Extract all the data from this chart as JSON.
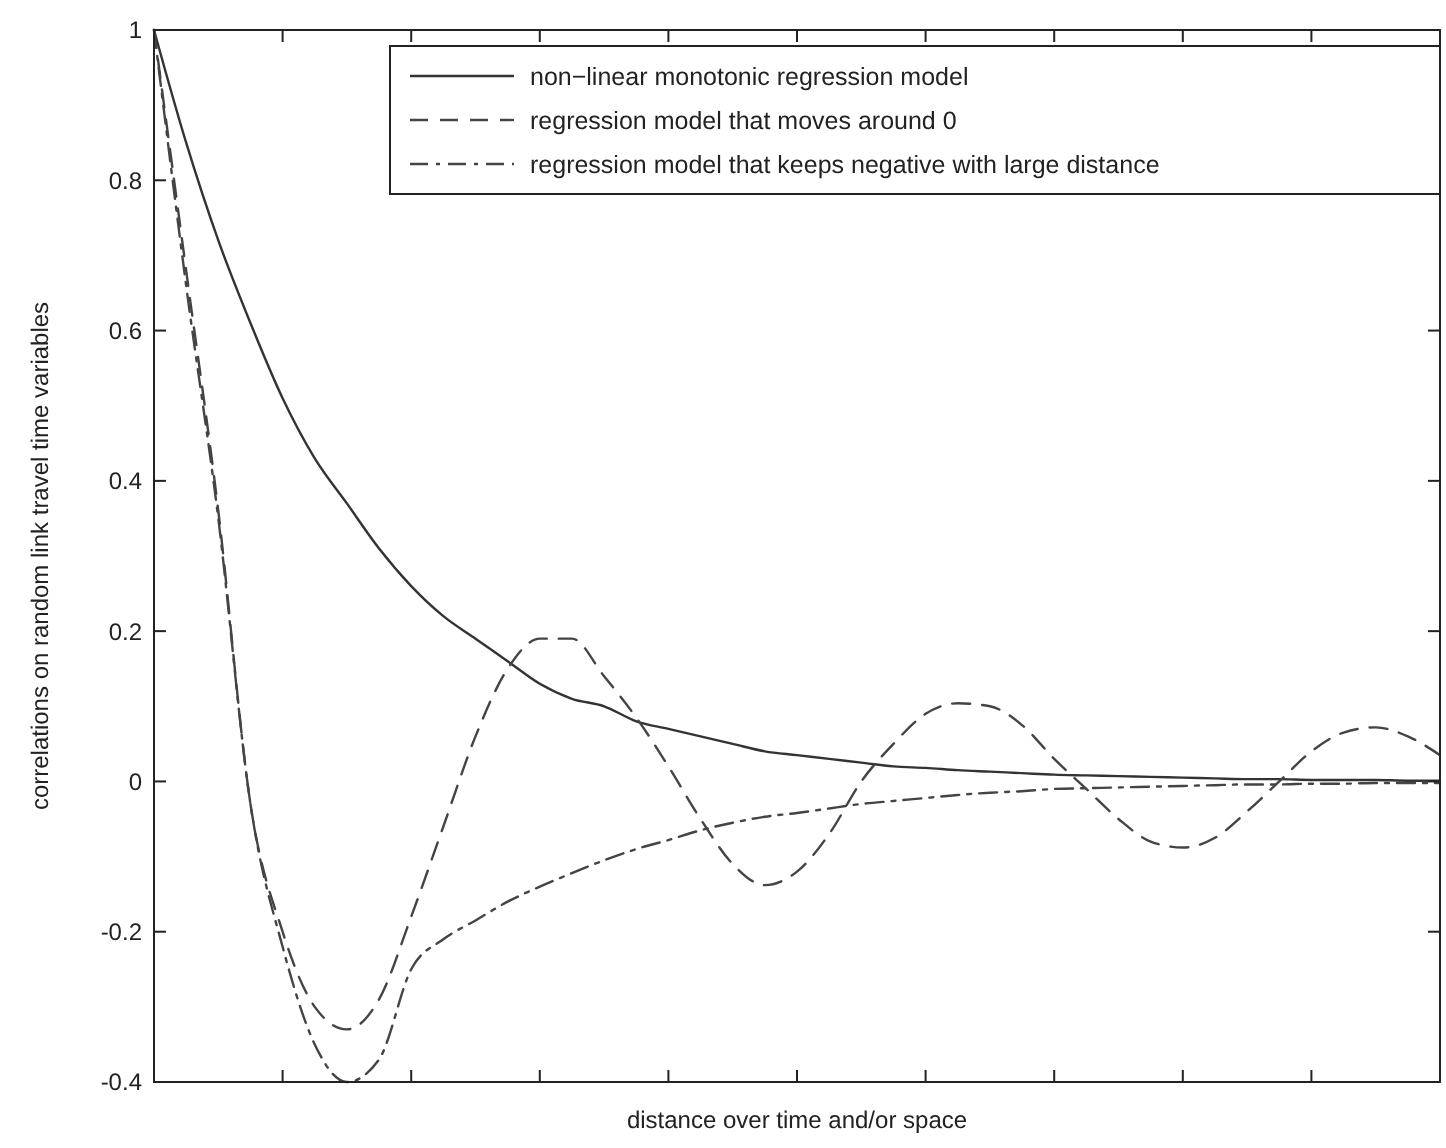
{
  "chart_data": {
    "type": "line",
    "xlabel": "distance over time and/or space",
    "ylabel": "correlations on random link travel time variables",
    "categories": [
      null,
      null,
      null,
      null,
      null,
      null,
      null,
      null,
      null,
      null,
      null,
      null,
      null,
      null,
      null,
      null,
      null,
      null,
      null,
      null,
      null,
      null,
      null,
      null,
      null,
      null,
      null,
      null,
      null,
      null,
      null,
      null,
      null,
      null,
      null,
      null,
      null,
      null,
      null,
      null,
      null
    ],
    "ylim": [
      -0.4,
      1
    ],
    "yticks": [
      -0.4,
      -0.2,
      0,
      0.2,
      0.4,
      0.6,
      0.8,
      1
    ],
    "legend": "top right",
    "grid": false,
    "marker": "none",
    "series": [
      {
        "name": "non−linear monotonic regression model",
        "color": "#333333",
        "line_style": "solid",
        "values": [
          1,
          0.85,
          0.72,
          0.61,
          0.51,
          0.43,
          0.37,
          0.31,
          0.26,
          0.22,
          0.19,
          0.16,
          0.13,
          0.11,
          0.1,
          0.08,
          0.07,
          0.06,
          0.05,
          0.04,
          0.035,
          0.03,
          0.025,
          0.02,
          0.018,
          0.015,
          0.013,
          0.011,
          0.009,
          0.008,
          0.007,
          0.006,
          0.005,
          0.004,
          0.003,
          0.003,
          0.002,
          0.002,
          0.002,
          0.001,
          0.001
        ]
      },
      {
        "name": "regression model that moves around 0",
        "color": "#444444",
        "line_style": "dashed",
        "values": [
          1,
          0.68,
          0.36,
          -0.03,
          -0.2,
          -0.3,
          -0.33,
          -0.29,
          -0.18,
          -0.06,
          0.06,
          0.15,
          0.19,
          0.19,
          0.14,
          0.085,
          0.02,
          -0.05,
          -0.11,
          -0.138,
          -0.12,
          -0.07,
          0,
          0.05,
          0.09,
          0.104,
          0.1,
          0.075,
          0.03,
          -0.01,
          -0.05,
          -0.08,
          -0.088,
          -0.075,
          -0.04,
          0,
          0.04,
          0.065,
          0.072,
          0.06,
          0.035
        ]
      },
      {
        "name": "regression model that keeps negative with large distance",
        "color": "#444444",
        "line_style": "dashdot",
        "values": [
          1,
          0.66,
          0.35,
          -0.03,
          -0.22,
          -0.35,
          -0.4,
          -0.37,
          -0.25,
          -0.21,
          -0.185,
          -0.16,
          -0.14,
          -0.122,
          -0.105,
          -0.09,
          -0.078,
          -0.065,
          -0.055,
          -0.047,
          -0.042,
          -0.036,
          -0.03,
          -0.026,
          -0.022,
          -0.018,
          -0.015,
          -0.013,
          -0.01,
          -0.009,
          -0.008,
          -0.007,
          -0.006,
          -0.005,
          -0.004,
          -0.004,
          -0.003,
          -0.003,
          -0.002,
          -0.002,
          -0.002
        ]
      }
    ]
  }
}
